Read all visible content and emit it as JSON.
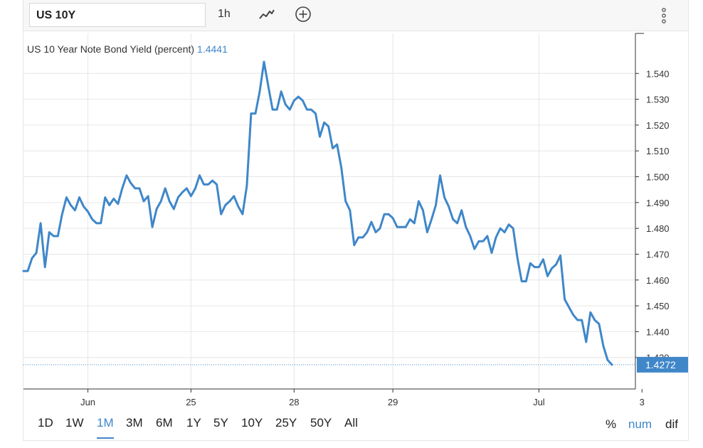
{
  "toolbar": {
    "symbol": "US 10Y",
    "interval": "1h",
    "icons": {
      "chart_type": "line-chart-icon",
      "add": "plus-circle-icon",
      "menu": "vertical-dots-menu-icon"
    }
  },
  "legend": {
    "label": "US 10 Year Note Bond Yield (percent)",
    "value": "1.4441"
  },
  "last_price_label": "1.4272",
  "colors": {
    "line": "#3f87c9",
    "accent": "#3f87c9",
    "grid": "#e6e6e6"
  },
  "range_buttons": [
    "1D",
    "1W",
    "1M",
    "3M",
    "6M",
    "1Y",
    "5Y",
    "10Y",
    "25Y",
    "50Y",
    "All"
  ],
  "active_range": "1M",
  "modes": [
    {
      "label": "%",
      "active": false
    },
    {
      "label": "num",
      "active": true
    },
    {
      "label": "dif",
      "active": false
    }
  ],
  "chart_data": {
    "type": "line",
    "title": "US 10 Year Note Bond Yield (percent)",
    "xlabel": "",
    "ylabel": "",
    "ylim": [
      1.4178,
      1.5555
    ],
    "y_ticks": [
      "1.540",
      "1.530",
      "1.520",
      "1.510",
      "1.500",
      "1.490",
      "1.480",
      "1.470",
      "1.460",
      "1.450",
      "1.440",
      "1.430"
    ],
    "y_tick_values": [
      1.54,
      1.53,
      1.52,
      1.51,
      1.5,
      1.49,
      1.48,
      1.47,
      1.46,
      1.45,
      1.44,
      1.43
    ],
    "x_tick_labels": [
      "Jun",
      "25",
      "28",
      "29",
      "Jul",
      "3"
    ],
    "x_tick_index": [
      15,
      39,
      63,
      86,
      120,
      144
    ],
    "grid": true,
    "last_value": 1.4272,
    "series": [
      {
        "values": [
          1.4635,
          1.4635,
          1.4685,
          1.4705,
          1.482,
          1.465,
          1.4785,
          1.477,
          1.477,
          1.4855,
          1.492,
          1.489,
          1.487,
          1.492,
          1.4885,
          1.4865,
          1.4835,
          1.482,
          1.482,
          1.492,
          1.489,
          1.4915,
          1.4895,
          1.4955,
          1.5005,
          1.4975,
          1.4955,
          1.4955,
          1.4905,
          1.4925,
          1.4805,
          1.4875,
          1.4905,
          1.4955,
          1.4905,
          1.4875,
          1.492,
          1.494,
          1.4955,
          1.4925,
          1.4955,
          1.5005,
          1.497,
          1.497,
          1.4985,
          1.497,
          1.4855,
          1.489,
          1.4905,
          1.4925,
          1.4885,
          1.4855,
          1.4965,
          1.5245,
          1.5245,
          1.533,
          1.5445,
          1.535,
          1.526,
          1.526,
          1.533,
          1.528,
          1.526,
          1.5295,
          1.531,
          1.5295,
          1.526,
          1.526,
          1.5245,
          1.5155,
          1.521,
          1.5195,
          1.511,
          1.5125,
          1.5035,
          1.4905,
          1.487,
          1.4735,
          1.4765,
          1.4765,
          1.4785,
          1.4825,
          1.4785,
          1.48,
          1.4855,
          1.4855,
          1.484,
          1.4805,
          1.4805,
          1.4805,
          1.4835,
          1.482,
          1.4905,
          1.487,
          1.4785,
          1.4835,
          1.489,
          1.5005,
          1.492,
          1.4885,
          1.4835,
          1.482,
          1.487,
          1.4805,
          1.477,
          1.472,
          1.475,
          1.475,
          1.477,
          1.4705,
          1.4765,
          1.48,
          1.4785,
          1.4815,
          1.48,
          1.4685,
          1.4595,
          1.4595,
          1.4665,
          1.465,
          1.465,
          1.468,
          1.4615,
          1.4645,
          1.466,
          1.4695,
          1.4525,
          1.4495,
          1.4465,
          1.4445,
          1.4445,
          1.436,
          1.4475,
          1.4445,
          1.443,
          1.4345,
          1.429,
          1.4272
        ]
      }
    ]
  }
}
